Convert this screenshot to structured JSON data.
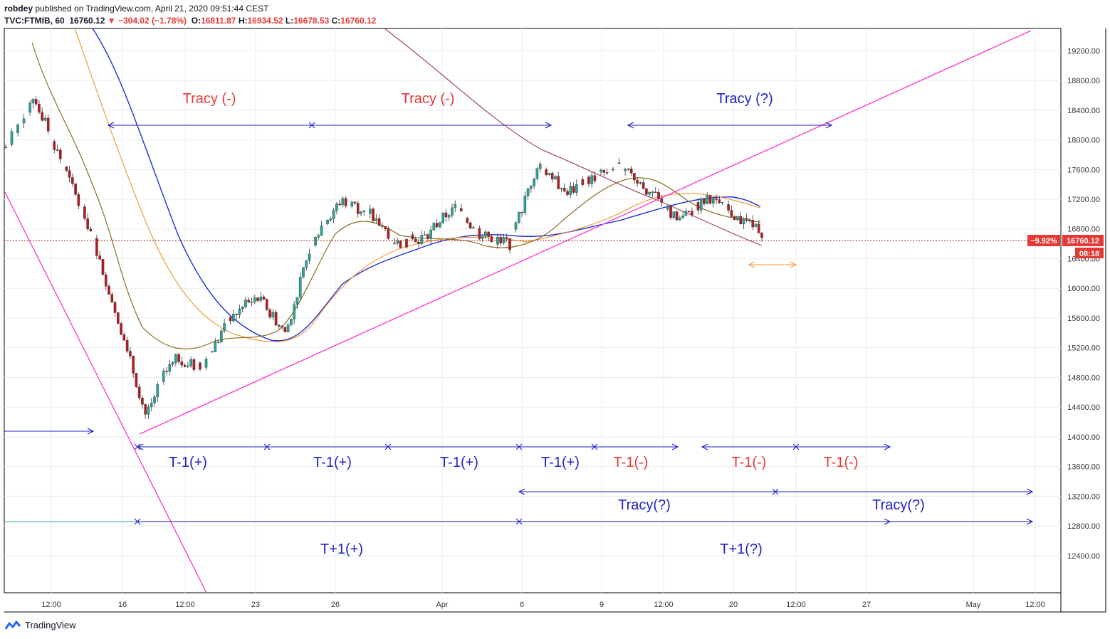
{
  "header": {
    "publisher": "robdey",
    "published_text": "published on TradingView.com, April 21, 2020 09:51:44 CEST",
    "symbol": "TVC:FTMIB, 60",
    "last": "16760.12",
    "change": "−304.02 (−1.78%)",
    "o_label": "O:",
    "o_value": "16811.87",
    "h_label": "H:",
    "h_value": "16934.52",
    "l_label": "L:",
    "l_value": "16678.53",
    "c_label": "C:",
    "c_value": "16760.12"
  },
  "footer": {
    "brand": "TradingView"
  },
  "price_tags": {
    "pct": "−9.92%",
    "price": "16760.12",
    "countdown": "08:18"
  },
  "chart_data": {
    "type": "candlestick",
    "symbol": "TVC:FTMIB",
    "interval": "60",
    "ylim": [
      11900,
      19500
    ],
    "y_ticks": [
      "19200.00",
      "18800.00",
      "18400.00",
      "18000.00",
      "17600.00",
      "17200.00",
      "16800.00",
      "16400.00",
      "16000.00",
      "15600.00",
      "15200.00",
      "14800.00",
      "14400.00",
      "14000.00",
      "13600.00",
      "13200.00",
      "12800.00",
      "12400.00"
    ],
    "x_ticks": [
      "12:00",
      "16",
      "12:00",
      "23",
      "26",
      "Apr",
      "6",
      "9",
      "12:00",
      "20",
      "12:00",
      "27",
      "May",
      "12:00"
    ],
    "last_price": 16760.12,
    "colors": {
      "up": "#26a69a",
      "down": "#b71c1c",
      "annotation_blue": "#1f1fc8",
      "annotation_red": "#e53935",
      "trend_magenta": "#ff33cc",
      "ma_blue": "#1e2fd6",
      "ma_orange": "#f59a3a",
      "ma_olive": "#8a6d22",
      "ma_purple": "#a0466a"
    },
    "annotations": {
      "tracy_top": [
        "Tracy (-)",
        "Tracy (-)",
        "Tracy (?)"
      ],
      "t_minus_1": [
        "T-1(+)",
        "T-1(+)",
        "T-1(+)",
        "T-1(+)",
        "T-1(-)",
        "T-1(-)",
        "T-1(-)"
      ],
      "tracy_lower": [
        "Tracy(?)",
        "Tracy(?)"
      ],
      "t_plus_1": [
        "T+1(+)",
        "T+1(?)"
      ]
    },
    "approx_close_path": [
      17900,
      18600,
      17700,
      16800,
      15600,
      14300,
      15100,
      14900,
      15600,
      15900,
      15400,
      16700,
      17200,
      17000,
      16600,
      16700,
      17100,
      16700,
      16600,
      17700,
      17300,
      17500,
      17650,
      17300,
      16900,
      17200,
      17000,
      16760
    ]
  }
}
